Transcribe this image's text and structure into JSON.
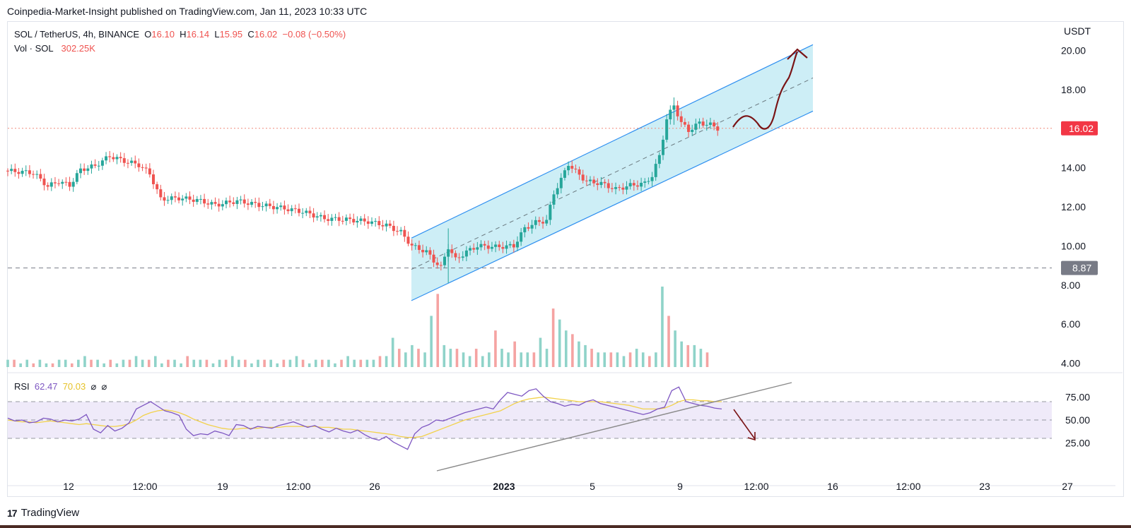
{
  "header": {
    "published": "Coinpedia-Market-Insight published on TradingView.com, Jan 11, 2023 10:33 UTC"
  },
  "legend": {
    "symbol": "SOL / TetherUS, 4h, BINANCE",
    "o_label": "O",
    "o": "16.10",
    "h_label": "H",
    "h": "16.14",
    "l_label": "L",
    "l": "15.95",
    "c_label": "C",
    "c": "16.02",
    "change": "−0.08 (−0.50%)",
    "vol_label": "Vol · SOL",
    "vol_value": "302.25K"
  },
  "rsi_legend": {
    "label": "RSI",
    "value": "62.47",
    "ma": "70.03",
    "sym1": "⌀",
    "sym2": "⌀"
  },
  "footer": {
    "brand": "TradingView",
    "logo": "17"
  },
  "colors": {
    "up": "#26a69a",
    "down": "#ef5350",
    "channel_fill": "#cdeef6",
    "channel_line": "#2e8ff0",
    "projection": "#7a1416",
    "rsi_line": "#7e57c2",
    "rsi_ma": "#f2d24b",
    "rsi_band": "#efeaf9",
    "price_badge": "#f23645",
    "level_badge": "#787b86"
  },
  "chart_data": {
    "type": "candlestick",
    "symbol": "SOL / TetherUS",
    "timeframe": "4h",
    "exchange": "BINANCE",
    "currency_label": "USDT",
    "price_axis": {
      "ticks": [
        "20.00",
        "18.00",
        "16.00",
        "14.00",
        "12.00",
        "10.00",
        "8.00",
        "6.00",
        "4.00"
      ],
      "range": [
        3.8,
        20.6
      ]
    },
    "time_axis": {
      "ticks": [
        "12",
        "12:00",
        "19",
        "12:00",
        "26",
        "2023",
        "5",
        "9",
        "12:00",
        "16",
        "12:00",
        "23",
        "27"
      ]
    },
    "current_price": "16.02",
    "support_level": "8.87",
    "close_path": [
      {
        "x": 0,
        "close": 13.85
      },
      {
        "x": 4,
        "close": 13.8
      },
      {
        "x": 8,
        "close": 13.75
      },
      {
        "x": 12,
        "close": 13.05
      },
      {
        "x": 15,
        "close": 13.3
      },
      {
        "x": 18,
        "close": 13.1
      },
      {
        "x": 21,
        "close": 13.9
      },
      {
        "x": 25,
        "close": 14.1
      },
      {
        "x": 29,
        "close": 14.6
      },
      {
        "x": 33,
        "close": 14.35
      },
      {
        "x": 37,
        "close": 14.15
      },
      {
        "x": 40,
        "close": 13.7
      },
      {
        "x": 43,
        "close": 12.4
      },
      {
        "x": 48,
        "close": 12.45
      },
      {
        "x": 53,
        "close": 12.35
      },
      {
        "x": 58,
        "close": 12.1
      },
      {
        "x": 64,
        "close": 12.3
      },
      {
        "x": 70,
        "close": 12.1
      },
      {
        "x": 76,
        "close": 11.95
      },
      {
        "x": 82,
        "close": 11.75
      },
      {
        "x": 88,
        "close": 11.4
      },
      {
        "x": 94,
        "close": 11.35
      },
      {
        "x": 100,
        "close": 11.25
      },
      {
        "x": 105,
        "close": 11.05
      },
      {
        "x": 109,
        "close": 10.7
      },
      {
        "x": 112,
        "close": 10.0
      },
      {
        "x": 116,
        "close": 9.7
      },
      {
        "x": 118,
        "close": 9.25
      },
      {
        "x": 120,
        "close": 8.9
      },
      {
        "x": 122,
        "close": 9.95
      },
      {
        "x": 124,
        "close": 9.3
      },
      {
        "x": 127,
        "close": 9.7
      },
      {
        "x": 130,
        "close": 10.0
      },
      {
        "x": 135,
        "close": 9.95
      },
      {
        "x": 140,
        "close": 10.0
      },
      {
        "x": 143,
        "close": 10.9
      },
      {
        "x": 146,
        "close": 11.2
      },
      {
        "x": 149,
        "close": 11.3
      },
      {
        "x": 151,
        "close": 12.7
      },
      {
        "x": 153,
        "close": 13.4
      },
      {
        "x": 155,
        "close": 14.2
      },
      {
        "x": 157,
        "close": 13.8
      },
      {
        "x": 160,
        "close": 13.3
      },
      {
        "x": 164,
        "close": 13.2
      },
      {
        "x": 168,
        "close": 12.9
      },
      {
        "x": 172,
        "close": 13.1
      },
      {
        "x": 176,
        "close": 13.2
      },
      {
        "x": 178,
        "close": 13.6
      },
      {
        "x": 180,
        "close": 14.6
      },
      {
        "x": 182,
        "close": 16.5
      },
      {
        "x": 184,
        "close": 17.2
      },
      {
        "x": 186,
        "close": 16.3
      },
      {
        "x": 188,
        "close": 15.9
      },
      {
        "x": 191,
        "close": 16.3
      },
      {
        "x": 194,
        "close": 16.2
      },
      {
        "x": 196,
        "close": 16.02
      }
    ],
    "volume_bars": [
      2,
      2,
      1,
      2,
      1,
      2,
      1,
      1,
      2,
      2,
      1,
      2,
      3,
      2,
      2,
      1,
      2,
      1,
      2,
      2,
      3,
      2,
      2,
      3,
      1,
      2,
      2,
      1,
      3,
      2,
      2,
      2,
      1,
      2,
      2,
      3,
      2,
      2,
      1,
      2,
      2,
      2,
      1,
      2,
      2,
      3,
      2,
      1,
      2,
      2,
      2,
      1,
      2,
      3,
      2,
      2,
      2,
      2,
      3,
      3,
      8,
      5,
      4,
      6,
      5,
      4,
      14,
      20,
      6,
      5,
      5,
      4,
      3,
      5,
      3,
      4,
      10,
      5,
      4,
      7,
      4,
      4,
      4,
      8,
      5,
      16,
      13,
      10,
      9,
      7,
      6,
      5,
      4,
      4,
      4,
      4,
      3,
      4,
      5,
      4,
      3,
      4,
      22,
      14,
      10,
      7,
      6,
      6,
      5,
      4
    ],
    "channel": {
      "lower_start": 7.2,
      "lower_end": 16.9,
      "upper_start": 10.4,
      "upper_end": 20.3,
      "mid_start": 8.8,
      "mid_end": 18.6
    },
    "projection_labels": [
      "up",
      "down"
    ],
    "rsi": {
      "ticks": [
        "75.00",
        "50.00",
        "25.00"
      ],
      "range": [
        0,
        100
      ],
      "upper": 70,
      "mid": 50,
      "lower": 30,
      "values": [
        52,
        49,
        50,
        47,
        48,
        52,
        51,
        48,
        50,
        49,
        51,
        56,
        40,
        36,
        44,
        38,
        41,
        47,
        62,
        66,
        70,
        65,
        60,
        58,
        55,
        40,
        33,
        35,
        34,
        38,
        36,
        33,
        45,
        44,
        40,
        43,
        42,
        41,
        44,
        46,
        48,
        45,
        42,
        44,
        40,
        37,
        41,
        38,
        36,
        39,
        34,
        30,
        28,
        32,
        26,
        22,
        18,
        35,
        42,
        45,
        50,
        49,
        52,
        55,
        58,
        60,
        62,
        64,
        62,
        72,
        80,
        78,
        76,
        82,
        84,
        76,
        70,
        68,
        65,
        67,
        66,
        70,
        72,
        68,
        66,
        64,
        62,
        60,
        58,
        56,
        58,
        62,
        64,
        82,
        86,
        70,
        68,
        66,
        65,
        63,
        62
      ],
      "ma": [
        50,
        49,
        48,
        48,
        47,
        48,
        49,
        48,
        47,
        46,
        45,
        46,
        45,
        44,
        43,
        43,
        44,
        46,
        50,
        55,
        58,
        60,
        61,
        60,
        58,
        55,
        51,
        48,
        45,
        43,
        41,
        40,
        40,
        41,
        41,
        41,
        42,
        42,
        42,
        43,
        43,
        43,
        43,
        43,
        42,
        42,
        41,
        40,
        40,
        39,
        38,
        37,
        36,
        35,
        34,
        32,
        31,
        31,
        32,
        35,
        38,
        41,
        44,
        47,
        50,
        52,
        54,
        56,
        58,
        60,
        64,
        68,
        71,
        73,
        74,
        75,
        74,
        73,
        72,
        71,
        70,
        70,
        70,
        70,
        69,
        68,
        67,
        66,
        64,
        62,
        62,
        62,
        63,
        66,
        70,
        72,
        72,
        71,
        71,
        70,
        70
      ]
    }
  }
}
